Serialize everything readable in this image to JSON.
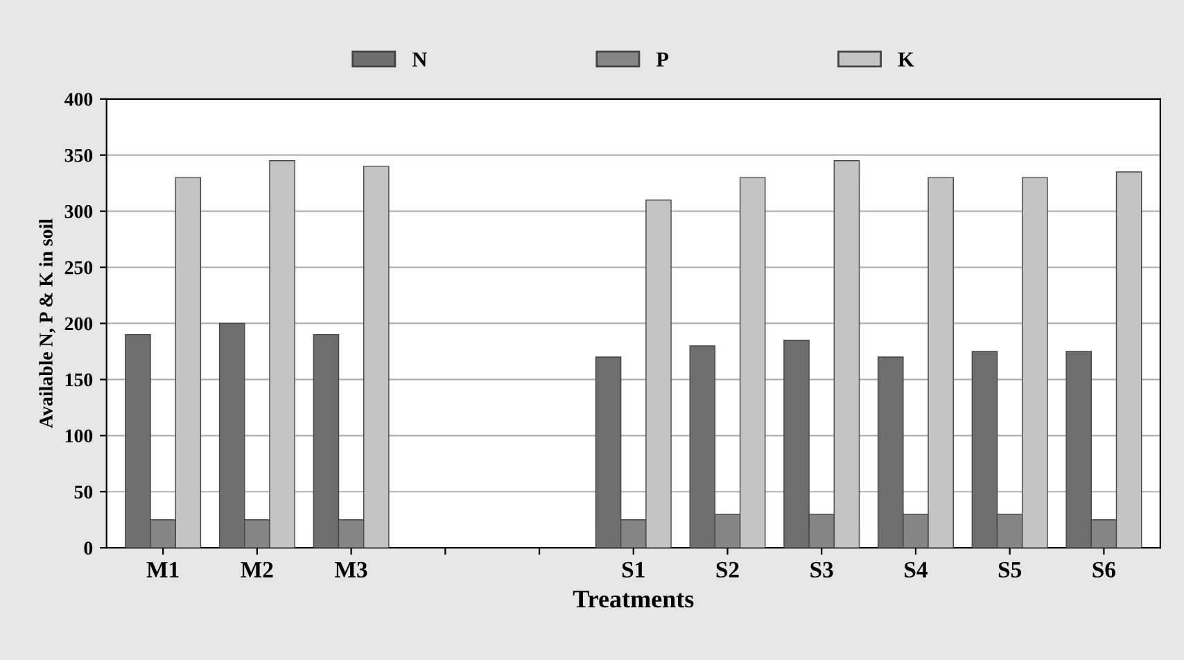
{
  "chart_data": {
    "type": "bar",
    "xlabel": "Treatments",
    "ylabel": "Available N, P & K in soil",
    "categories": [
      "M1",
      "M2",
      "M3",
      null,
      null,
      "S1",
      "S2",
      "S3",
      "S4",
      "S5",
      "S6"
    ],
    "series": [
      {
        "name": "N",
        "color": "#6e6e6e",
        "values": [
          190,
          200,
          190,
          null,
          null,
          170,
          180,
          185,
          170,
          175,
          175
        ]
      },
      {
        "name": "P",
        "color": "#858585",
        "values": [
          25,
          25,
          25,
          null,
          null,
          25,
          30,
          30,
          30,
          30,
          25
        ]
      },
      {
        "name": "K",
        "color": "#c4c4c4",
        "values": [
          330,
          345,
          340,
          null,
          null,
          310,
          330,
          345,
          330,
          330,
          335
        ]
      }
    ],
    "ylim": [
      0,
      400
    ],
    "yticks": [
      0,
      50,
      100,
      150,
      200,
      250,
      300,
      350,
      400
    ],
    "grid": "y",
    "legend": "top"
  }
}
